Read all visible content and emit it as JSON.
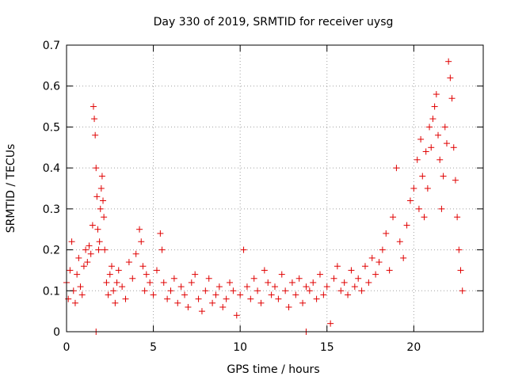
{
  "chart_data": {
    "type": "scatter",
    "title": "Day 330 of 2019, SRMTID for receiver uysg",
    "xlabel": "GPS time / hours",
    "ylabel": "SRMTID / TECUs",
    "xlim": [
      0,
      24
    ],
    "ylim": [
      0,
      0.7
    ],
    "xticks": [
      0,
      5,
      10,
      15,
      20
    ],
    "yticks": [
      0,
      0.1,
      0.2,
      0.3,
      0.4,
      0.5,
      0.6,
      0.7
    ],
    "xtick_labels": [
      "0",
      "5",
      "10",
      "15",
      "20"
    ],
    "ytick_labels": [
      "0",
      "0.1",
      "0.2",
      "0.3",
      "0.4",
      "0.5",
      "0.6",
      "0.7"
    ],
    "grid": true,
    "marker": "+",
    "color": "#e00000",
    "series": [
      {
        "name": "SRMTID",
        "x": [
          0.0,
          0.1,
          0.2,
          0.3,
          0.4,
          0.5,
          0.6,
          0.7,
          0.8,
          0.9,
          1.0,
          1.1,
          1.2,
          1.3,
          1.4,
          1.5,
          1.55,
          1.6,
          1.65,
          1.7,
          1.75,
          1.8,
          1.85,
          1.9,
          1.95,
          2.0,
          2.05,
          2.1,
          2.15,
          2.2,
          2.3,
          2.4,
          2.5,
          2.6,
          2.7,
          2.8,
          2.9,
          3.0,
          3.2,
          3.4,
          3.6,
          3.8,
          4.0,
          4.2,
          4.3,
          4.4,
          4.5,
          4.6,
          4.8,
          5.0,
          5.2,
          5.4,
          5.5,
          5.6,
          5.8,
          6.0,
          6.2,
          6.4,
          6.6,
          6.8,
          7.0,
          7.2,
          7.4,
          7.6,
          7.8,
          8.0,
          8.2,
          8.4,
          8.6,
          8.8,
          9.0,
          9.2,
          9.4,
          9.6,
          9.8,
          10.0,
          10.2,
          10.4,
          10.6,
          10.8,
          11.0,
          11.2,
          11.4,
          11.6,
          11.8,
          12.0,
          12.2,
          12.4,
          12.6,
          12.8,
          13.0,
          13.2,
          13.4,
          13.6,
          13.8,
          14.0,
          14.2,
          14.4,
          14.6,
          14.8,
          15.0,
          15.2,
          15.4,
          15.6,
          15.8,
          16.0,
          16.2,
          16.4,
          16.6,
          16.8,
          17.0,
          17.2,
          17.4,
          17.6,
          17.8,
          18.0,
          18.2,
          18.4,
          18.6,
          18.8,
          19.0,
          19.2,
          19.4,
          19.6,
          19.8,
          20.0,
          20.2,
          20.3,
          20.4,
          20.5,
          20.6,
          20.7,
          20.8,
          20.9,
          21.0,
          21.1,
          21.2,
          21.3,
          21.4,
          21.5,
          21.6,
          21.7,
          21.8,
          21.9,
          22.0,
          22.1,
          22.2,
          22.3,
          22.4,
          22.5,
          22.6,
          22.7,
          22.8,
          1.7,
          13.8
        ],
        "y": [
          0.12,
          0.08,
          0.15,
          0.22,
          0.1,
          0.07,
          0.14,
          0.18,
          0.11,
          0.09,
          0.16,
          0.2,
          0.17,
          0.21,
          0.19,
          0.26,
          0.55,
          0.52,
          0.48,
          0.4,
          0.33,
          0.25,
          0.2,
          0.22,
          0.3,
          0.35,
          0.38,
          0.32,
          0.28,
          0.2,
          0.12,
          0.09,
          0.14,
          0.16,
          0.1,
          0.07,
          0.12,
          0.15,
          0.11,
          0.08,
          0.17,
          0.13,
          0.19,
          0.25,
          0.22,
          0.16,
          0.1,
          0.14,
          0.12,
          0.09,
          0.15,
          0.24,
          0.2,
          0.12,
          0.08,
          0.1,
          0.13,
          0.07,
          0.11,
          0.09,
          0.06,
          0.12,
          0.14,
          0.08,
          0.05,
          0.1,
          0.13,
          0.07,
          0.09,
          0.11,
          0.06,
          0.08,
          0.12,
          0.1,
          0.04,
          0.09,
          0.2,
          0.11,
          0.08,
          0.13,
          0.1,
          0.07,
          0.15,
          0.12,
          0.09,
          0.11,
          0.08,
          0.14,
          0.1,
          0.06,
          0.12,
          0.09,
          0.13,
          0.07,
          0.11,
          0.1,
          0.12,
          0.08,
          0.14,
          0.09,
          0.11,
          0.02,
          0.13,
          0.16,
          0.1,
          0.12,
          0.09,
          0.15,
          0.11,
          0.13,
          0.1,
          0.16,
          0.12,
          0.18,
          0.14,
          0.17,
          0.2,
          0.24,
          0.15,
          0.28,
          0.4,
          0.22,
          0.18,
          0.26,
          0.32,
          0.35,
          0.42,
          0.3,
          0.47,
          0.38,
          0.28,
          0.44,
          0.35,
          0.5,
          0.45,
          0.52,
          0.55,
          0.58,
          0.48,
          0.42,
          0.3,
          0.38,
          0.5,
          0.46,
          0.66,
          0.62,
          0.57,
          0.45,
          0.37,
          0.28,
          0.2,
          0.15,
          0.1,
          0.0,
          0.0
        ]
      }
    ]
  }
}
